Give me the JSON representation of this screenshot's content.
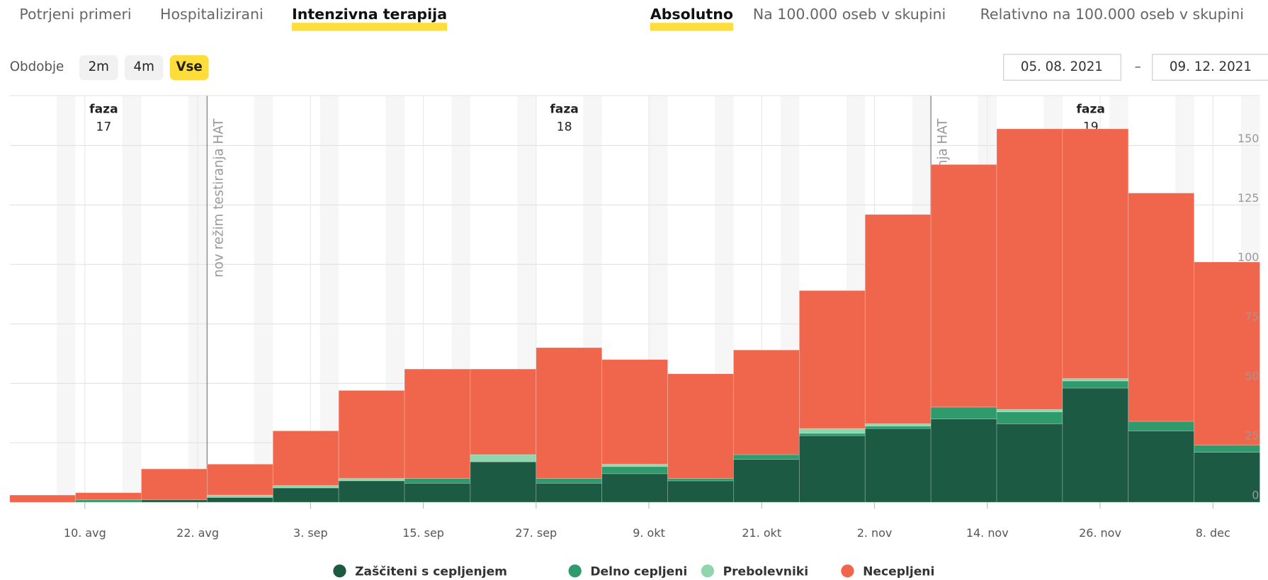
{
  "tabs": [
    "Potrjeni primeri",
    "Hospitalizirani",
    "Intenzivna terapija"
  ],
  "tabs_selected": 2,
  "modes": [
    "Absolutno",
    "Na 100.000 oseb v skupini",
    "Relativno na 100.000 oseb v skupini"
  ],
  "modes_selected": 0,
  "period": {
    "label": "Obdobje",
    "options": [
      "2m",
      "4m",
      "Vse"
    ],
    "selected": 2
  },
  "date_from": "05. 08. 2021",
  "range_separator": "–",
  "date_to": "09. 12. 2021",
  "chart_data": {
    "type": "bar",
    "stacked": true,
    "x": [
      "2021-08-02",
      "2021-08-09",
      "2021-08-16",
      "2021-08-23",
      "2021-08-30",
      "2021-09-06",
      "2021-09-13",
      "2021-09-20",
      "2021-09-27",
      "2021-10-04",
      "2021-10-11",
      "2021-10-18",
      "2021-10-25",
      "2021-11-01",
      "2021-11-08",
      "2021-11-15",
      "2021-11-22",
      "2021-11-29",
      "2021-12-06"
    ],
    "xlim": [
      "2021-08-02",
      "2021-12-13"
    ],
    "xticks": [
      {
        "value": "2021-08-10",
        "label": "10. avg"
      },
      {
        "value": "2021-08-22",
        "label": "22. avg"
      },
      {
        "value": "2021-09-03",
        "label": "3. sep"
      },
      {
        "value": "2021-09-15",
        "label": "15. sep"
      },
      {
        "value": "2021-09-27",
        "label": "27. sep"
      },
      {
        "value": "2021-10-09",
        "label": "9. okt"
      },
      {
        "value": "2021-10-21",
        "label": "21. okt"
      },
      {
        "value": "2021-11-02",
        "label": "2. nov"
      },
      {
        "value": "2021-11-14",
        "label": "14. nov"
      },
      {
        "value": "2021-11-26",
        "label": "26. nov"
      },
      {
        "value": "2021-12-08",
        "label": "8. dec"
      }
    ],
    "ylim": [
      0,
      171
    ],
    "yticks": [
      0,
      25,
      50,
      75,
      100,
      125,
      150
    ],
    "grid": true,
    "series": [
      {
        "name": "Zaščiteni s cepljenjem",
        "color": "#1d5a43",
        "values": [
          0,
          0,
          1,
          2,
          6,
          9,
          8,
          17,
          8,
          12,
          9,
          18,
          28,
          31,
          35,
          33,
          48,
          30,
          21
        ]
      },
      {
        "name": "Delno cepljeni",
        "color": "#2f9a6c",
        "values": [
          0,
          1,
          0,
          0,
          0,
          0,
          2,
          0,
          2,
          3,
          1,
          2,
          1,
          1,
          5,
          5,
          3,
          4,
          3
        ]
      },
      {
        "name": "Prebolevniki",
        "color": "#8fd6ae",
        "values": [
          0,
          0,
          0,
          1,
          1,
          1,
          0,
          3,
          0,
          1,
          0,
          0,
          2,
          1,
          0,
          1,
          1,
          0,
          0
        ]
      },
      {
        "name": "Necepljeni",
        "color": "#f0664d",
        "values": [
          3,
          3,
          13,
          13,
          23,
          37,
          46,
          36,
          55,
          44,
          44,
          44,
          58,
          88,
          102,
          118,
          105,
          96,
          77
        ]
      }
    ],
    "annotations": [
      {
        "x": "2021-08-23",
        "label": "nov režim testiranja HAT"
      },
      {
        "x": "2021-11-08",
        "label": "nov režim testiranja HAT"
      }
    ],
    "phases": [
      {
        "x": "2021-08-12",
        "label": "faza",
        "number": "17"
      },
      {
        "x": "2021-09-30",
        "label": "faza",
        "number": "18"
      },
      {
        "x": "2021-11-25",
        "label": "faza",
        "number": "19"
      }
    ]
  }
}
